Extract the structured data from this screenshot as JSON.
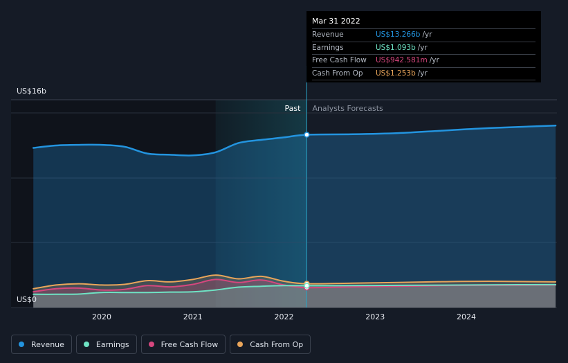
{
  "colors": {
    "revenue": "#2394df",
    "earnings": "#6fe3c4",
    "free_cash_flow": "#d6477e",
    "cash_from_op": "#e9a55a",
    "background": "#151b26"
  },
  "tooltip": {
    "date": "Mar 31 2022",
    "rows": [
      {
        "label": "Revenue",
        "value": "US$13.266b",
        "unit": "/yr",
        "color": "#2394df"
      },
      {
        "label": "Earnings",
        "value": "US$1.093b",
        "unit": "/yr",
        "color": "#6fe3c4"
      },
      {
        "label": "Free Cash Flow",
        "value": "US$942.581m",
        "unit": "/yr",
        "color": "#d6477e"
      },
      {
        "label": "Cash From Op",
        "value": "US$1.253b",
        "unit": "/yr",
        "color": "#e9a55a"
      }
    ]
  },
  "legend": [
    {
      "label": "Revenue",
      "color": "#2394df"
    },
    {
      "label": "Earnings",
      "color": "#6fe3c4"
    },
    {
      "label": "Free Cash Flow",
      "color": "#d6477e"
    },
    {
      "label": "Cash From Op",
      "color": "#e9a55a"
    }
  ],
  "chart_data": {
    "type": "area",
    "ylim": [
      0,
      16
    ],
    "y_unit": "US$ billions",
    "y_tick_labels": [
      {
        "label": "US$16b",
        "value": 16
      },
      {
        "label": "US$0",
        "value": 0
      }
    ],
    "x_ticks": [
      2020,
      2021,
      2022,
      2023,
      2024
    ],
    "xlim": [
      2019.25,
      2024.98
    ],
    "past_label": "Past",
    "forecast_label": "Analysts Forecasts",
    "divider_x": 2022.25,
    "shaded_region": [
      2021.25,
      2022.25
    ],
    "series": [
      {
        "name": "Revenue",
        "x": [
          2019.25,
          2019.5,
          2019.75,
          2020.0,
          2020.25,
          2020.5,
          2020.75,
          2021.0,
          2021.25,
          2021.5,
          2021.75,
          2022.0,
          2022.25,
          2022.75,
          2023.25,
          2023.75,
          2024.25,
          2024.98
        ],
        "y": [
          12.2,
          12.4,
          12.45,
          12.45,
          12.3,
          11.75,
          11.65,
          11.6,
          11.85,
          12.6,
          12.85,
          13.05,
          13.266,
          13.3,
          13.4,
          13.6,
          13.8,
          14.0
        ]
      },
      {
        "name": "Earnings",
        "x": [
          2019.25,
          2019.5,
          2019.75,
          2020.0,
          2020.25,
          2020.5,
          2020.75,
          2021.0,
          2021.25,
          2021.5,
          2021.75,
          2022.0,
          2022.25,
          2022.75,
          2023.25,
          2023.75,
          2024.25,
          2024.98
        ],
        "y": [
          0.4,
          0.4,
          0.42,
          0.55,
          0.55,
          0.55,
          0.58,
          0.6,
          0.75,
          0.98,
          1.05,
          1.1,
          1.093,
          1.1,
          1.12,
          1.14,
          1.16,
          1.18
        ]
      },
      {
        "name": "Free Cash Flow",
        "x": [
          2019.25,
          2019.5,
          2019.75,
          2020.0,
          2020.25,
          2020.5,
          2020.75,
          2021.0,
          2021.25,
          2021.5,
          2021.75,
          2022.0,
          2022.25,
          2022.75,
          2023.25,
          2023.75,
          2024.25,
          2024.98
        ],
        "y": [
          0.6,
          0.85,
          0.9,
          0.75,
          0.8,
          1.1,
          1.0,
          1.2,
          1.6,
          1.35,
          1.55,
          1.15,
          0.943,
          1.0,
          1.05,
          1.1,
          1.12,
          1.15
        ]
      },
      {
        "name": "Cash From Op",
        "x": [
          2019.25,
          2019.5,
          2019.75,
          2020.0,
          2020.25,
          2020.5,
          2020.75,
          2021.0,
          2021.25,
          2021.5,
          2021.75,
          2022.0,
          2022.25,
          2022.75,
          2023.25,
          2023.75,
          2024.25,
          2024.98
        ],
        "y": [
          0.85,
          1.15,
          1.25,
          1.15,
          1.2,
          1.5,
          1.4,
          1.6,
          1.95,
          1.65,
          1.85,
          1.45,
          1.253,
          1.3,
          1.35,
          1.42,
          1.45,
          1.4
        ]
      }
    ]
  }
}
